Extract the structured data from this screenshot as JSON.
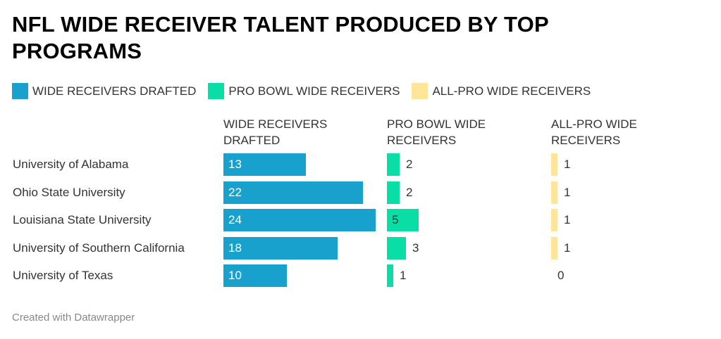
{
  "chart_data": {
    "type": "bar",
    "title": "NFL WIDE RECEIVER TALENT PRODUCED BY TOP PROGRAMS",
    "categories": [
      "University of Alabama",
      "Ohio State University",
      "Louisiana State University",
      "University of Southern California",
      "University of Texas"
    ],
    "series": [
      {
        "name": "WIDE RECEIVERS DRAFTED",
        "header": "WIDE RECEIVERS DRAFTED",
        "color": "#18a1cd",
        "values": [
          13,
          22,
          24,
          18,
          10
        ]
      },
      {
        "name": "PRO BOWL WIDE RECEIVERS",
        "header": "PRO BOWL WIDE RECEIVERS",
        "color": "#09dea7",
        "values": [
          2,
          2,
          5,
          3,
          1
        ]
      },
      {
        "name": "ALL-PRO WIDE RECEIVERS",
        "header": "ALL-PRO WIDE RECEIVERS",
        "color": "#fee59a",
        "values": [
          1,
          1,
          1,
          1,
          0
        ]
      }
    ],
    "legend_position": "top-left",
    "grid": false
  },
  "footer": "Created with Datawrapper"
}
